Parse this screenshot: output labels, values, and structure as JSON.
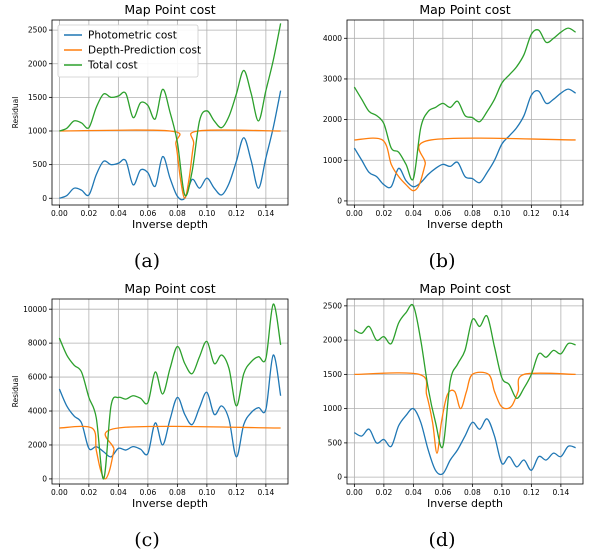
{
  "chart_data": [
    {
      "type": "line",
      "caption": "(a)",
      "title": "Map Point cost",
      "xlabel": "Inverse depth",
      "ylabel": "Residual",
      "xlim": [
        -0.005,
        0.155
      ],
      "ylim": [
        -100,
        2650
      ],
      "xticks": [
        0.0,
        0.02,
        0.04,
        0.06,
        0.08,
        0.1,
        0.12,
        0.14
      ],
      "xtick_labels": [
        "0.00",
        "0.02",
        "0.04",
        "0.06",
        "0.08",
        "0.10",
        "0.12",
        "0.14"
      ],
      "yticks": [
        0,
        500,
        1000,
        1500,
        2000,
        2500
      ],
      "ytick_labels": [
        "0",
        "500",
        "1000",
        "1500",
        "2000",
        "2500"
      ],
      "grid": true,
      "legend_position": "top-left",
      "series": [
        {
          "name": "Photometric cost",
          "color": "#1f77b4",
          "x": [
            0.0,
            0.005,
            0.01,
            0.015,
            0.02,
            0.025,
            0.03,
            0.035,
            0.04,
            0.045,
            0.05,
            0.055,
            0.06,
            0.065,
            0.07,
            0.075,
            0.08,
            0.085,
            0.09,
            0.095,
            0.1,
            0.105,
            0.11,
            0.115,
            0.12,
            0.125,
            0.13,
            0.135,
            0.14,
            0.145,
            0.15
          ],
          "y": [
            0,
            40,
            150,
            120,
            50,
            350,
            550,
            500,
            520,
            560,
            200,
            420,
            380,
            180,
            620,
            300,
            30,
            0,
            280,
            150,
            300,
            150,
            50,
            220,
            550,
            900,
            560,
            150,
            600,
            1050,
            1600
          ]
        },
        {
          "name": "Depth-Prediction cost",
          "color": "#ff7f0e",
          "x": [
            0.0,
            0.075,
            0.079,
            0.082,
            0.085,
            0.088,
            0.091,
            0.094,
            0.15
          ],
          "y": [
            1000,
            1000,
            800,
            300,
            0,
            300,
            800,
            1000,
            1000
          ]
        },
        {
          "name": "Total cost",
          "color": "#2ca02c",
          "x": [
            0.0,
            0.005,
            0.01,
            0.015,
            0.02,
            0.025,
            0.03,
            0.035,
            0.04,
            0.045,
            0.05,
            0.055,
            0.06,
            0.065,
            0.07,
            0.075,
            0.08,
            0.085,
            0.09,
            0.095,
            0.1,
            0.105,
            0.11,
            0.115,
            0.12,
            0.125,
            0.13,
            0.135,
            0.14,
            0.145,
            0.15
          ],
          "y": [
            1000,
            1040,
            1150,
            1120,
            1050,
            1350,
            1550,
            1500,
            1520,
            1560,
            1200,
            1420,
            1380,
            1180,
            1620,
            1280,
            830,
            50,
            400,
            1150,
            1300,
            1150,
            1050,
            1220,
            1550,
            1900,
            1560,
            1150,
            1600,
            2050,
            2600
          ]
        }
      ]
    },
    {
      "type": "line",
      "caption": "(b)",
      "title": "Map Point cost",
      "xlabel": "Inverse depth",
      "ylabel": "",
      "xlim": [
        -0.005,
        0.155
      ],
      "ylim": [
        -100,
        4450
      ],
      "xticks": [
        0.0,
        0.02,
        0.04,
        0.06,
        0.08,
        0.1,
        0.12,
        0.14
      ],
      "xtick_labels": [
        "0.00",
        "0.02",
        "0.04",
        "0.06",
        "0.08",
        "0.10",
        "0.12",
        "0.14"
      ],
      "yticks": [
        0,
        1000,
        2000,
        3000,
        4000
      ],
      "ytick_labels": [
        "0",
        "1000",
        "2000",
        "3000",
        "4000"
      ],
      "grid": true,
      "series": [
        {
          "name": "Photometric cost",
          "color": "#1f77b4",
          "x": [
            0.0,
            0.005,
            0.01,
            0.015,
            0.02,
            0.025,
            0.03,
            0.035,
            0.04,
            0.045,
            0.05,
            0.055,
            0.06,
            0.065,
            0.07,
            0.075,
            0.08,
            0.085,
            0.09,
            0.095,
            0.1,
            0.105,
            0.11,
            0.115,
            0.12,
            0.125,
            0.13,
            0.135,
            0.14,
            0.145,
            0.15
          ],
          "y": [
            1300,
            1000,
            700,
            600,
            400,
            350,
            800,
            500,
            350,
            450,
            650,
            800,
            900,
            850,
            950,
            600,
            550,
            450,
            700,
            1000,
            1400,
            1600,
            1800,
            2100,
            2600,
            2700,
            2400,
            2500,
            2650,
            2750,
            2650
          ]
        },
        {
          "name": "Depth-Prediction cost",
          "color": "#ff7f0e",
          "x": [
            0.0,
            0.019,
            0.025,
            0.03,
            0.035,
            0.04,
            0.044,
            0.048,
            0.052,
            0.15
          ],
          "y": [
            1500,
            1500,
            900,
            600,
            400,
            250,
            400,
            900,
            1500,
            1500
          ]
        },
        {
          "name": "Total cost",
          "color": "#2ca02c",
          "x": [
            0.0,
            0.005,
            0.01,
            0.015,
            0.02,
            0.025,
            0.03,
            0.035,
            0.04,
            0.045,
            0.05,
            0.055,
            0.06,
            0.065,
            0.07,
            0.075,
            0.08,
            0.085,
            0.09,
            0.095,
            0.1,
            0.105,
            0.11,
            0.115,
            0.12,
            0.125,
            0.13,
            0.135,
            0.14,
            0.145,
            0.15
          ],
          "y": [
            2800,
            2500,
            2200,
            2100,
            1900,
            1300,
            1200,
            900,
            550,
            1800,
            2200,
            2300,
            2400,
            2300,
            2450,
            2100,
            2050,
            1950,
            2200,
            2500,
            2900,
            3100,
            3300,
            3600,
            4100,
            4200,
            3900,
            4000,
            4150,
            4250,
            4150
          ]
        }
      ]
    },
    {
      "type": "line",
      "caption": "(c)",
      "title": "Map Point cost",
      "xlabel": "Inverse depth",
      "ylabel": "Residual",
      "xlim": [
        -0.005,
        0.155
      ],
      "ylim": [
        -300,
        10600
      ],
      "xticks": [
        0.0,
        0.02,
        0.04,
        0.06,
        0.08,
        0.1,
        0.12,
        0.14
      ],
      "xtick_labels": [
        "0.00",
        "0.02",
        "0.04",
        "0.06",
        "0.08",
        "0.10",
        "0.12",
        "0.14"
      ],
      "yticks": [
        0,
        2000,
        4000,
        6000,
        8000,
        10000
      ],
      "ytick_labels": [
        "0",
        "2000",
        "4000",
        "6000",
        "8000",
        "10000"
      ],
      "grid": true,
      "series": [
        {
          "name": "Photometric cost",
          "color": "#1f77b4",
          "x": [
            0.0,
            0.005,
            0.01,
            0.015,
            0.02,
            0.025,
            0.03,
            0.035,
            0.04,
            0.045,
            0.05,
            0.055,
            0.06,
            0.065,
            0.07,
            0.075,
            0.08,
            0.085,
            0.09,
            0.095,
            0.1,
            0.105,
            0.11,
            0.115,
            0.12,
            0.125,
            0.13,
            0.135,
            0.14,
            0.145,
            0.15
          ],
          "y": [
            5300,
            4300,
            3700,
            3300,
            1800,
            1900,
            1600,
            1300,
            1800,
            1700,
            1900,
            1750,
            1500,
            3300,
            2000,
            3500,
            4800,
            3800,
            3200,
            4200,
            5100,
            3800,
            4300,
            3500,
            1300,
            3200,
            3900,
            4200,
            4100,
            7300,
            4900
          ]
        },
        {
          "name": "Depth-Prediction cost",
          "color": "#ff7f0e",
          "x": [
            0.0,
            0.022,
            0.025,
            0.028,
            0.031,
            0.034,
            0.037,
            0.04,
            0.15
          ],
          "y": [
            3000,
            3000,
            1700,
            500,
            0,
            500,
            1700,
            3000,
            3000
          ]
        },
        {
          "name": "Total cost",
          "color": "#2ca02c",
          "x": [
            0.0,
            0.005,
            0.01,
            0.015,
            0.02,
            0.025,
            0.03,
            0.035,
            0.04,
            0.045,
            0.05,
            0.055,
            0.06,
            0.065,
            0.07,
            0.075,
            0.08,
            0.085,
            0.09,
            0.095,
            0.1,
            0.105,
            0.11,
            0.115,
            0.12,
            0.125,
            0.13,
            0.135,
            0.14,
            0.145,
            0.15
          ],
          "y": [
            8300,
            7300,
            6700,
            6300,
            4800,
            3600,
            0,
            4300,
            4800,
            4700,
            4900,
            4750,
            4500,
            6300,
            5000,
            6500,
            7800,
            6800,
            6200,
            7200,
            8100,
            6800,
            7300,
            6500,
            4300,
            6200,
            6900,
            7200,
            7100,
            10300,
            7900
          ]
        }
      ]
    },
    {
      "type": "line",
      "caption": "(d)",
      "title": "Map Point cost",
      "xlabel": "Inverse depth",
      "ylabel": "",
      "xlim": [
        -0.005,
        0.155
      ],
      "ylim": [
        -100,
        2600
      ],
      "xticks": [
        0.0,
        0.02,
        0.04,
        0.06,
        0.08,
        0.1,
        0.12,
        0.14
      ],
      "xtick_labels": [
        "0.00",
        "0.02",
        "0.04",
        "0.06",
        "0.08",
        "0.10",
        "0.12",
        "0.14"
      ],
      "yticks": [
        0,
        500,
        1000,
        1500,
        2000,
        2500
      ],
      "ytick_labels": [
        "0",
        "500",
        "1000",
        "1500",
        "2000",
        "2500"
      ],
      "grid": true,
      "series": [
        {
          "name": "Photometric cost",
          "color": "#1f77b4",
          "x": [
            0.0,
            0.005,
            0.01,
            0.015,
            0.02,
            0.025,
            0.03,
            0.035,
            0.04,
            0.045,
            0.05,
            0.055,
            0.06,
            0.065,
            0.07,
            0.075,
            0.08,
            0.085,
            0.09,
            0.095,
            0.1,
            0.105,
            0.11,
            0.115,
            0.12,
            0.125,
            0.13,
            0.135,
            0.14,
            0.145,
            0.15
          ],
          "y": [
            650,
            600,
            700,
            500,
            550,
            450,
            750,
            900,
            1000,
            800,
            400,
            100,
            50,
            250,
            400,
            600,
            800,
            700,
            850,
            600,
            200,
            300,
            150,
            250,
            100,
            300,
            250,
            350,
            300,
            450,
            430
          ]
        },
        {
          "name": "Depth-Prediction cost",
          "color": "#ff7f0e",
          "x": [
            0.0,
            0.044,
            0.049,
            0.053,
            0.056,
            0.059,
            0.063,
            0.068,
            0.072,
            0.076,
            0.08,
            0.091,
            0.095,
            0.099,
            0.103,
            0.107,
            0.111,
            0.115,
            0.15
          ],
          "y": [
            1500,
            1500,
            1200,
            800,
            350,
            800,
            1200,
            1250,
            1000,
            1250,
            1500,
            1500,
            1250,
            1050,
            1000,
            1050,
            1250,
            1500,
            1500
          ]
        },
        {
          "name": "Total cost",
          "color": "#2ca02c",
          "x": [
            0.0,
            0.005,
            0.01,
            0.015,
            0.02,
            0.025,
            0.03,
            0.035,
            0.04,
            0.045,
            0.05,
            0.055,
            0.06,
            0.065,
            0.07,
            0.075,
            0.08,
            0.085,
            0.09,
            0.095,
            0.1,
            0.105,
            0.11,
            0.115,
            0.12,
            0.125,
            0.13,
            0.135,
            0.14,
            0.145,
            0.15
          ],
          "y": [
            2150,
            2100,
            2200,
            2000,
            2050,
            1950,
            2250,
            2400,
            2500,
            2000,
            1300,
            800,
            450,
            1400,
            1650,
            1850,
            2300,
            2200,
            2350,
            1900,
            1450,
            1350,
            1150,
            1300,
            1500,
            1800,
            1750,
            1850,
            1800,
            1950,
            1930
          ]
        }
      ]
    }
  ]
}
